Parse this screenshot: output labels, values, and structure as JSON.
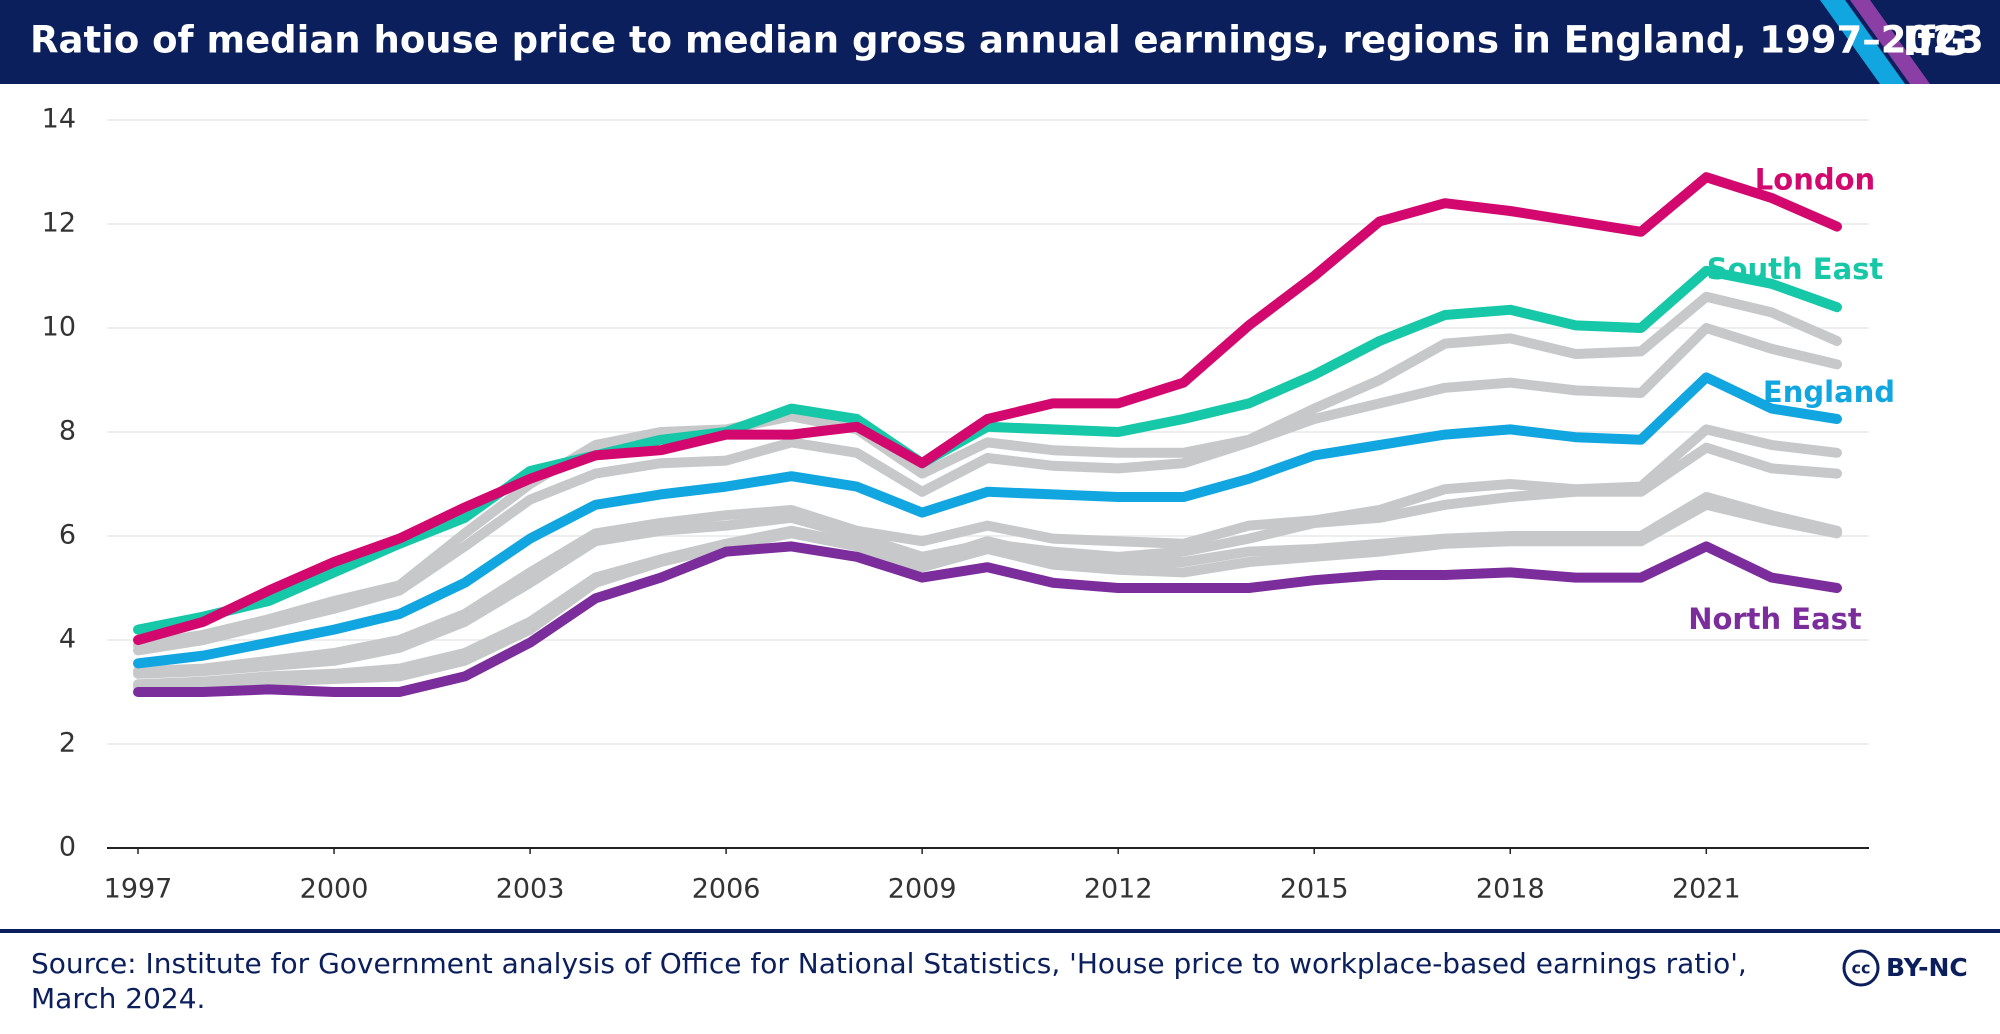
{
  "header": {
    "title": "Ratio of median house price to median gross annual earnings, regions in England, 1997–2023",
    "logo": "IfG"
  },
  "chart_data": {
    "type": "line",
    "x": [
      1997,
      1998,
      1999,
      2000,
      2001,
      2002,
      2003,
      2004,
      2005,
      2006,
      2007,
      2008,
      2009,
      2010,
      2011,
      2012,
      2013,
      2014,
      2015,
      2016,
      2017,
      2018,
      2019,
      2020,
      2021,
      2022,
      2023
    ],
    "xlim": [
      1997,
      2023
    ],
    "xticks": [
      1997,
      2000,
      2003,
      2006,
      2009,
      2012,
      2015,
      2018,
      2021
    ],
    "ylim": [
      0,
      14
    ],
    "yticks": [
      0,
      2,
      4,
      6,
      8,
      10,
      12,
      14
    ],
    "grid": true,
    "series": [
      {
        "color": "#c6c8ca",
        "values": [
          3.9,
          4.1,
          4.4,
          4.75,
          5.05,
          6.05,
          7.0,
          7.75,
          8.0,
          8.05,
          8.3,
          8.05,
          7.2,
          7.8,
          7.65,
          7.6,
          7.6,
          7.85,
          8.45,
          9.0,
          9.7,
          9.8,
          9.5,
          9.55,
          10.6,
          10.3,
          9.75
        ]
      },
      {
        "color": "#c6c8ca",
        "values": [
          3.8,
          4.0,
          4.3,
          4.6,
          4.95,
          5.8,
          6.7,
          7.2,
          7.4,
          7.45,
          7.8,
          7.6,
          6.85,
          7.5,
          7.35,
          7.3,
          7.4,
          7.8,
          8.25,
          8.55,
          8.85,
          8.95,
          8.8,
          8.75,
          10.0,
          9.6,
          9.3
        ]
      },
      {
        "color": "#c6c8ca",
        "values": [
          3.4,
          3.45,
          3.6,
          3.75,
          4.0,
          4.5,
          5.3,
          6.05,
          6.25,
          6.4,
          6.5,
          6.1,
          5.9,
          6.2,
          5.95,
          5.9,
          5.85,
          6.2,
          6.3,
          6.5,
          6.9,
          7.0,
          6.9,
          6.95,
          8.05,
          7.75,
          7.6
        ]
      },
      {
        "color": "#c6c8ca",
        "values": [
          3.35,
          3.4,
          3.5,
          3.6,
          3.85,
          4.35,
          5.1,
          5.9,
          6.1,
          6.2,
          6.35,
          6.0,
          5.6,
          5.85,
          5.7,
          5.6,
          5.7,
          5.95,
          6.25,
          6.35,
          6.6,
          6.75,
          6.85,
          6.85,
          7.7,
          7.3,
          7.2
        ]
      },
      {
        "color": "#c6c8ca",
        "values": [
          3.15,
          3.2,
          3.3,
          3.35,
          3.45,
          3.75,
          4.35,
          5.2,
          5.55,
          5.85,
          6.1,
          5.85,
          5.5,
          5.9,
          5.6,
          5.5,
          5.5,
          5.7,
          5.75,
          5.85,
          5.95,
          6.0,
          6.0,
          6.0,
          6.75,
          6.4,
          6.1
        ]
      },
      {
        "color": "#c6c8ca",
        "values": [
          3.1,
          3.1,
          3.2,
          3.25,
          3.3,
          3.6,
          4.2,
          5.1,
          5.5,
          5.8,
          6.05,
          5.8,
          5.4,
          5.75,
          5.45,
          5.35,
          5.3,
          5.5,
          5.6,
          5.7,
          5.85,
          5.9,
          5.9,
          5.9,
          6.6,
          6.3,
          6.05
        ]
      },
      {
        "name": "North East",
        "color": "#7b2d9b",
        "values": [
          3.0,
          3.0,
          3.05,
          3.0,
          3.0,
          3.3,
          3.95,
          4.8,
          5.2,
          5.7,
          5.8,
          5.6,
          5.2,
          5.4,
          5.1,
          5.0,
          5.0,
          5.0,
          5.15,
          5.25,
          5.25,
          5.3,
          5.2,
          5.2,
          5.8,
          5.2,
          5.0
        ]
      },
      {
        "name": "England",
        "color": "#12a6e0",
        "values": [
          3.55,
          3.7,
          3.95,
          4.2,
          4.5,
          5.1,
          5.95,
          6.6,
          6.8,
          6.95,
          7.15,
          6.95,
          6.45,
          6.85,
          6.8,
          6.75,
          6.75,
          7.1,
          7.55,
          7.75,
          7.95,
          8.05,
          7.9,
          7.85,
          9.05,
          8.45,
          8.25
        ]
      },
      {
        "name": "South East",
        "color": "#16c8a8",
        "values": [
          4.2,
          4.45,
          4.75,
          5.3,
          5.85,
          6.35,
          7.25,
          7.55,
          7.85,
          8.0,
          8.45,
          8.25,
          7.4,
          8.1,
          8.05,
          8.0,
          8.25,
          8.55,
          9.1,
          9.75,
          10.25,
          10.35,
          10.05,
          10.0,
          11.1,
          10.85,
          10.4
        ]
      },
      {
        "name": "London",
        "color": "#d3086f",
        "values": [
          4.0,
          4.35,
          4.95,
          5.5,
          5.95,
          6.55,
          7.1,
          7.55,
          7.65,
          7.95,
          7.95,
          8.1,
          7.4,
          8.25,
          8.55,
          8.55,
          8.95,
          10.05,
          11.0,
          12.05,
          12.4,
          12.25,
          12.05,
          11.85,
          12.9,
          12.5,
          11.95
        ]
      }
    ]
  },
  "footer": {
    "source": "Source: Institute for Government analysis of Office for National Statistics, 'House price to workplace-based earnings ratio', March 2024.",
    "license_icon": "cc",
    "license": "BY-NC"
  }
}
